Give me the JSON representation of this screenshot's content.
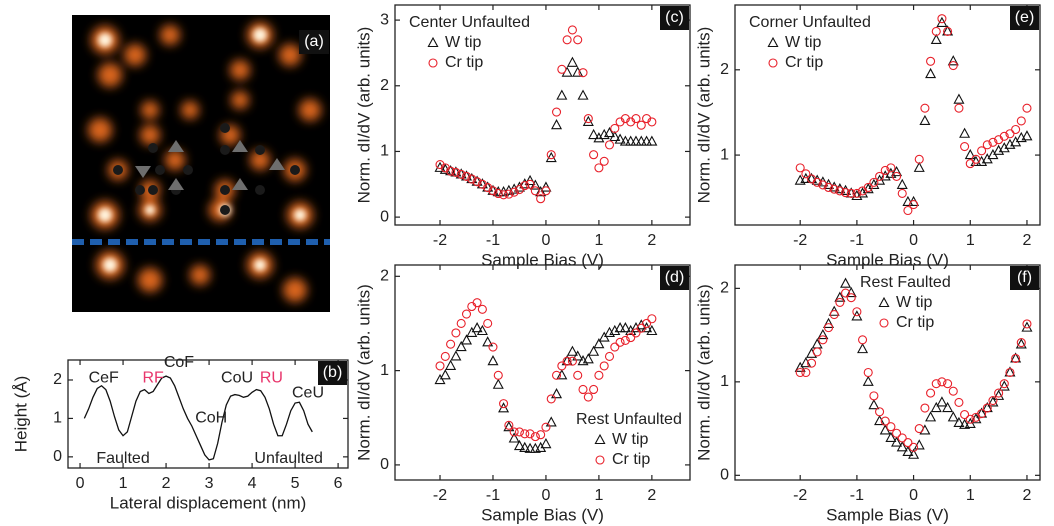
{
  "chart_data": [
    {
      "type": "image",
      "panel_label": "(a)"
    },
    {
      "type": "line",
      "panel_label": "(b)",
      "xlabel": "Lateral displacement (nm)",
      "ylabel": "Height (Å)",
      "xlim": [
        -0.28,
        6.23
      ],
      "ylim": [
        -0.29,
        2.52
      ],
      "xticks": [
        0,
        1,
        2,
        3,
        4,
        5,
        6
      ],
      "yticks": [
        0,
        1,
        2
      ],
      "x": [
        0.1,
        0.2,
        0.3,
        0.4,
        0.5,
        0.6,
        0.7,
        0.8,
        0.9,
        1.0,
        1.1,
        1.2,
        1.3,
        1.4,
        1.5,
        1.6,
        1.7,
        1.8,
        1.9,
        2.0,
        2.1,
        2.2,
        2.3,
        2.4,
        2.5,
        2.6,
        2.7,
        2.8,
        2.9,
        3.0,
        3.1,
        3.2,
        3.3,
        3.4,
        3.5,
        3.6,
        3.7,
        3.8,
        3.9,
        4.0,
        4.1,
        4.2,
        4.3,
        4.4,
        4.5,
        4.6,
        4.7,
        4.8,
        4.9,
        5.0,
        5.1,
        5.2,
        5.3,
        5.4
      ],
      "series": [
        {
          "color": "#111111",
          "values": [
            1.0,
            1.25,
            1.55,
            1.78,
            1.85,
            1.75,
            1.45,
            1.05,
            0.7,
            0.55,
            0.65,
            1.05,
            1.45,
            1.7,
            1.75,
            1.65,
            1.7,
            1.88,
            2.05,
            2.1,
            2.05,
            1.85,
            1.55,
            1.25,
            1.0,
            0.8,
            0.55,
            0.3,
            0.05,
            -0.08,
            -0.05,
            0.35,
            0.9,
            1.35,
            1.58,
            1.62,
            1.6,
            1.55,
            1.58,
            1.68,
            1.75,
            1.72,
            1.55,
            1.25,
            0.85,
            0.55,
            0.55,
            0.85,
            1.2,
            1.4,
            1.42,
            1.2,
            0.85,
            0.65
          ]
        }
      ],
      "annotations": [
        {
          "text": "CeF",
          "x": 0.55,
          "y": 2.05,
          "color": "#222222"
        },
        {
          "text": "RF",
          "x": 1.7,
          "y": 2.05,
          "color": "#e8356b"
        },
        {
          "text": "CoF",
          "x": 2.3,
          "y": 2.45,
          "color": "#222222"
        },
        {
          "text": "CoH",
          "x": 3.05,
          "y": 1.0,
          "color": "#222222"
        },
        {
          "text": "CoU",
          "x": 3.65,
          "y": 2.05,
          "color": "#222222"
        },
        {
          "text": "RU",
          "x": 4.45,
          "y": 2.05,
          "color": "#e8356b"
        },
        {
          "text": "CeU",
          "x": 5.3,
          "y": 1.65,
          "color": "#222222"
        },
        {
          "text": "Faulted",
          "x": 1.0,
          "y": -0.05,
          "color": "#222222"
        },
        {
          "text": "Unfaulted",
          "x": 4.85,
          "y": -0.05,
          "color": "#222222"
        }
      ]
    },
    {
      "type": "scatter",
      "panel_label": "(c)",
      "legend_title": "Center Unfaulted",
      "legend": "upper left",
      "xlabel": "Sample Bias (V)",
      "ylabel": "Norm. dI/dV (arb. units)",
      "xlim": [
        -2.85,
        2.72
      ],
      "ylim": [
        -0.12,
        3.23
      ],
      "xticks": [
        -2,
        -1,
        0,
        1,
        2
      ],
      "yticks": [
        0,
        1,
        2,
        3
      ],
      "x": [
        -2.0,
        -1.9,
        -1.8,
        -1.7,
        -1.6,
        -1.5,
        -1.4,
        -1.3,
        -1.2,
        -1.1,
        -1.0,
        -0.9,
        -0.8,
        -0.7,
        -0.6,
        -0.5,
        -0.4,
        -0.3,
        -0.2,
        -0.1,
        0.0,
        0.1,
        0.2,
        0.3,
        0.4,
        0.5,
        0.6,
        0.7,
        0.8,
        0.9,
        1.0,
        1.1,
        1.2,
        1.3,
        1.4,
        1.5,
        1.6,
        1.7,
        1.8,
        1.9,
        2.0
      ],
      "series": [
        {
          "name": "W tip",
          "color": "#111111",
          "marker": "triangle",
          "values": [
            0.75,
            0.72,
            0.7,
            0.68,
            0.65,
            0.62,
            0.58,
            0.54,
            0.5,
            0.45,
            0.4,
            0.38,
            0.38,
            0.4,
            0.42,
            0.45,
            0.5,
            0.55,
            0.48,
            0.38,
            0.45,
            0.9,
            1.4,
            1.85,
            2.2,
            2.35,
            2.2,
            1.85,
            1.45,
            1.25,
            1.2,
            1.25,
            1.28,
            1.22,
            1.18,
            1.15,
            1.15,
            1.15,
            1.15,
            1.15,
            1.15
          ]
        },
        {
          "name": "Cr tip",
          "color": "#e8202a",
          "marker": "circle",
          "values": [
            0.8,
            0.75,
            0.7,
            0.68,
            0.65,
            0.62,
            0.58,
            0.54,
            0.5,
            0.45,
            0.4,
            0.36,
            0.34,
            0.35,
            0.38,
            0.42,
            0.48,
            0.5,
            0.4,
            0.28,
            0.4,
            0.95,
            1.6,
            2.25,
            2.7,
            2.85,
            2.7,
            2.2,
            1.5,
            0.95,
            0.75,
            0.85,
            1.1,
            1.35,
            1.45,
            1.5,
            1.45,
            1.5,
            1.4,
            1.5,
            1.45
          ]
        }
      ]
    },
    {
      "type": "scatter",
      "panel_label": "(d)",
      "legend_title": "Rest Unfaulted",
      "legend": "lower right",
      "xlabel": "Sample Bias (V)",
      "ylabel": "Norm. dI/dV (arb. units)",
      "xlim": [
        -2.85,
        2.72
      ],
      "ylim": [
        -0.16,
        2.12
      ],
      "xticks": [
        -2,
        -1,
        0,
        1,
        2
      ],
      "yticks": [
        0,
        1,
        2
      ],
      "x": [
        -2.0,
        -1.9,
        -1.8,
        -1.7,
        -1.6,
        -1.5,
        -1.4,
        -1.3,
        -1.2,
        -1.1,
        -1.0,
        -0.9,
        -0.8,
        -0.7,
        -0.6,
        -0.5,
        -0.4,
        -0.3,
        -0.2,
        -0.1,
        0.0,
        0.1,
        0.2,
        0.3,
        0.4,
        0.5,
        0.6,
        0.7,
        0.8,
        0.9,
        1.0,
        1.1,
        1.2,
        1.3,
        1.4,
        1.5,
        1.6,
        1.7,
        1.8,
        1.9,
        2.0
      ],
      "series": [
        {
          "name": "W tip",
          "color": "#111111",
          "marker": "triangle",
          "values": [
            0.9,
            0.95,
            1.05,
            1.15,
            1.25,
            1.32,
            1.4,
            1.45,
            1.42,
            1.3,
            1.1,
            0.85,
            0.6,
            0.4,
            0.28,
            0.2,
            0.18,
            0.17,
            0.17,
            0.18,
            0.22,
            0.45,
            0.75,
            0.95,
            1.1,
            1.2,
            1.15,
            1.1,
            1.12,
            1.2,
            1.28,
            1.35,
            1.4,
            1.42,
            1.45,
            1.45,
            1.42,
            1.45,
            1.48,
            1.45,
            1.42
          ]
        },
        {
          "name": "Cr tip",
          "color": "#e8202a",
          "marker": "circle",
          "values": [
            1.05,
            1.15,
            1.28,
            1.4,
            1.5,
            1.6,
            1.68,
            1.72,
            1.65,
            1.5,
            1.25,
            0.95,
            0.65,
            0.42,
            0.35,
            0.35,
            0.33,
            0.33,
            0.3,
            0.32,
            0.4,
            0.7,
            0.95,
            1.05,
            1.1,
            1.1,
            0.95,
            0.8,
            0.72,
            0.8,
            0.95,
            1.05,
            1.15,
            1.25,
            1.3,
            1.32,
            1.35,
            1.4,
            1.45,
            1.5,
            1.55
          ]
        }
      ]
    },
    {
      "type": "scatter",
      "panel_label": "(e)",
      "legend_title": "Corner Unfaulted",
      "legend": "upper left",
      "xlabel": "Sample Bias (V)",
      "ylabel": "Norm. dI/dV (arb. units)",
      "xlim": [
        -3.15,
        2.23
      ],
      "ylim": [
        0.18,
        2.76
      ],
      "xticks": [
        -2,
        -1,
        0,
        1,
        2
      ],
      "yticks": [
        1,
        2
      ],
      "x": [
        -2.0,
        -1.9,
        -1.8,
        -1.7,
        -1.6,
        -1.5,
        -1.4,
        -1.3,
        -1.2,
        -1.1,
        -1.0,
        -0.9,
        -0.8,
        -0.7,
        -0.6,
        -0.5,
        -0.4,
        -0.3,
        -0.2,
        -0.1,
        0.0,
        0.1,
        0.2,
        0.3,
        0.4,
        0.5,
        0.6,
        0.7,
        0.8,
        0.9,
        1.0,
        1.1,
        1.2,
        1.3,
        1.4,
        1.5,
        1.6,
        1.7,
        1.8,
        1.9,
        2.0
      ],
      "series": [
        {
          "name": "W tip",
          "color": "#111111",
          "marker": "triangle",
          "values": [
            0.7,
            0.72,
            0.72,
            0.7,
            0.68,
            0.65,
            0.62,
            0.6,
            0.58,
            0.55,
            0.52,
            0.55,
            0.6,
            0.65,
            0.7,
            0.75,
            0.78,
            0.8,
            0.65,
            0.45,
            0.45,
            0.85,
            1.4,
            1.95,
            2.35,
            2.55,
            2.45,
            2.1,
            1.65,
            1.25,
            1.0,
            0.92,
            0.92,
            0.95,
            1.0,
            1.05,
            1.08,
            1.12,
            1.15,
            1.2,
            1.22
          ]
        },
        {
          "name": "Cr tip",
          "color": "#e8202a",
          "marker": "circle",
          "values": [
            0.85,
            0.78,
            0.72,
            0.68,
            0.65,
            0.62,
            0.6,
            0.58,
            0.56,
            0.55,
            0.55,
            0.58,
            0.62,
            0.68,
            0.75,
            0.82,
            0.85,
            0.75,
            0.55,
            0.35,
            0.42,
            0.95,
            1.55,
            2.1,
            2.45,
            2.6,
            2.45,
            2.05,
            1.55,
            1.1,
            0.9,
            0.95,
            1.05,
            1.12,
            1.15,
            1.18,
            1.22,
            1.25,
            1.3,
            1.4,
            1.55
          ]
        }
      ]
    },
    {
      "type": "scatter",
      "panel_label": "(f)",
      "legend_title": "Rest Faulted",
      "legend": "upper right",
      "xlabel": "Sample Bias (V)",
      "ylabel": "Norm. dI/dV (arb. units)",
      "xlim": [
        -3.15,
        2.23
      ],
      "ylim": [
        -0.05,
        2.25
      ],
      "xticks": [
        -2,
        -1,
        0,
        1,
        2
      ],
      "yticks": [
        0,
        1,
        2
      ],
      "x": [
        -2.0,
        -1.9,
        -1.8,
        -1.7,
        -1.6,
        -1.5,
        -1.4,
        -1.3,
        -1.2,
        -1.1,
        -1.0,
        -0.9,
        -0.8,
        -0.7,
        -0.6,
        -0.5,
        -0.4,
        -0.3,
        -0.2,
        -0.1,
        0.0,
        0.1,
        0.2,
        0.3,
        0.4,
        0.5,
        0.6,
        0.7,
        0.8,
        0.9,
        1.0,
        1.1,
        1.2,
        1.3,
        1.4,
        1.5,
        1.6,
        1.7,
        1.8,
        1.9,
        2.0
      ],
      "series": [
        {
          "name": "W tip",
          "color": "#111111",
          "marker": "triangle",
          "values": [
            1.15,
            1.2,
            1.3,
            1.4,
            1.5,
            1.62,
            1.75,
            1.9,
            2.05,
            1.95,
            1.7,
            1.35,
            1.0,
            0.75,
            0.58,
            0.48,
            0.4,
            0.35,
            0.3,
            0.25,
            0.22,
            0.32,
            0.48,
            0.62,
            0.72,
            0.78,
            0.72,
            0.62,
            0.56,
            0.54,
            0.55,
            0.6,
            0.66,
            0.72,
            0.78,
            0.85,
            0.95,
            1.1,
            1.25,
            1.4,
            1.58
          ]
        },
        {
          "name": "Cr tip",
          "color": "#e8202a",
          "marker": "circle",
          "values": [
            1.1,
            1.1,
            1.2,
            1.32,
            1.45,
            1.58,
            1.72,
            1.85,
            1.95,
            1.9,
            1.75,
            1.45,
            1.1,
            0.85,
            0.68,
            0.58,
            0.52,
            0.45,
            0.4,
            0.35,
            0.3,
            0.5,
            0.72,
            0.88,
            0.98,
            1.0,
            0.98,
            0.9,
            0.78,
            0.65,
            0.6,
            0.62,
            0.66,
            0.72,
            0.8,
            0.88,
            0.98,
            1.1,
            1.25,
            1.42,
            1.62
          ]
        }
      ]
    }
  ]
}
